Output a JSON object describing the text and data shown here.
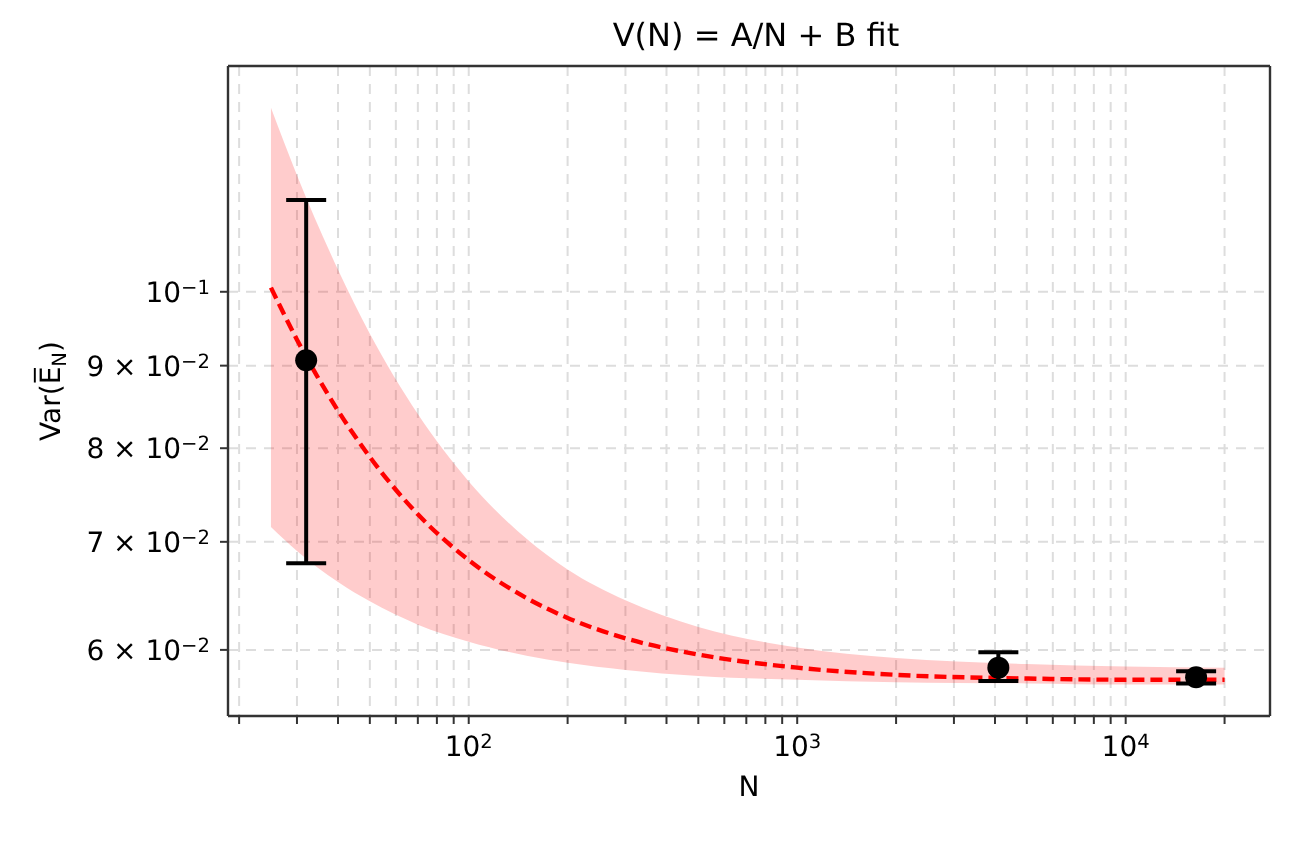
{
  "chart_data": {
    "type": "line",
    "title": "V(N) = A/N + B fit",
    "xlabel": "N",
    "ylabel": "Var(E̅$_{N}$)",
    "log": "xy",
    "grid": true,
    "xlim": [
      18.5,
      27500
    ],
    "ylim": [
      0.0546,
      0.138
    ],
    "xticks": [
      {
        "value": 20,
        "label": null
      },
      {
        "value": 30,
        "label": null
      },
      {
        "value": 40,
        "label": null
      },
      {
        "value": 50,
        "label": null
      },
      {
        "value": 60,
        "label": null
      },
      {
        "value": 70,
        "label": null
      },
      {
        "value": 80,
        "label": null
      },
      {
        "value": 90,
        "label": null
      },
      {
        "value": 100,
        "label": "10$^{2}$"
      },
      {
        "value": 200,
        "label": null
      },
      {
        "value": 300,
        "label": null
      },
      {
        "value": 400,
        "label": null
      },
      {
        "value": 500,
        "label": null
      },
      {
        "value": 600,
        "label": null
      },
      {
        "value": 700,
        "label": null
      },
      {
        "value": 800,
        "label": null
      },
      {
        "value": 900,
        "label": null
      },
      {
        "value": 1000,
        "label": "10$^{3}$"
      },
      {
        "value": 2000,
        "label": null
      },
      {
        "value": 3000,
        "label": null
      },
      {
        "value": 4000,
        "label": null
      },
      {
        "value": 5000,
        "label": null
      },
      {
        "value": 6000,
        "label": null
      },
      {
        "value": 7000,
        "label": null
      },
      {
        "value": 8000,
        "label": null
      },
      {
        "value": 9000,
        "label": null
      },
      {
        "value": 10000,
        "label": "10$^{4}$"
      },
      {
        "value": 20000,
        "label": null
      }
    ],
    "yticks": [
      {
        "value": 0.06,
        "label": "6 × 10$^{−2}$"
      },
      {
        "value": 0.07,
        "label": "7 × 10$^{−2}$"
      },
      {
        "value": 0.08,
        "label": "8 × 10$^{−2}$"
      },
      {
        "value": 0.09,
        "label": "9 × 10$^{−2}$"
      },
      {
        "value": 0.1,
        "label": "10$^{−1}$"
      }
    ],
    "series": [
      {
        "color": "#ff0000",
        "line_style": "dashed",
        "marker": "none",
        "x": [
          25,
          30,
          40,
          50,
          70,
          100,
          150,
          200,
          300,
          500,
          1000,
          2000,
          5000,
          10000,
          20000
        ],
        "values": [
          0.1006,
          0.0934,
          0.0844,
          0.079,
          0.0728,
          0.0682,
          0.0646,
          0.0628,
          0.061,
          0.0596,
          0.0585,
          0.0579,
          0.0576,
          0.0575,
          0.0575
        ],
        "lower": [
          0.0715,
          0.0691,
          0.0661,
          0.0643,
          0.0622,
          0.0607,
          0.0595,
          0.0589,
          0.0583,
          0.0578,
          0.0575,
          0.0573,
          0.0572,
          0.0571,
          0.0571
        ],
        "upper": [
          0.13,
          0.1181,
          0.1032,
          0.0942,
          0.084,
          0.0763,
          0.0703,
          0.0673,
          0.0644,
          0.062,
          0.0602,
          0.0593,
          0.0588,
          0.0586,
          0.0585
        ]
      },
      {
        "type": "scatter",
        "color": "#000000",
        "marker": "circle",
        "x": [
          32,
          4096,
          16384
        ],
        "values": [
          0.0907,
          0.0585,
          0.0577
        ],
        "errors": [
          [
            0.0679,
            0.114
          ],
          [
            0.0574,
            0.0598
          ],
          [
            0.0572,
            0.0582
          ]
        ]
      }
    ]
  }
}
